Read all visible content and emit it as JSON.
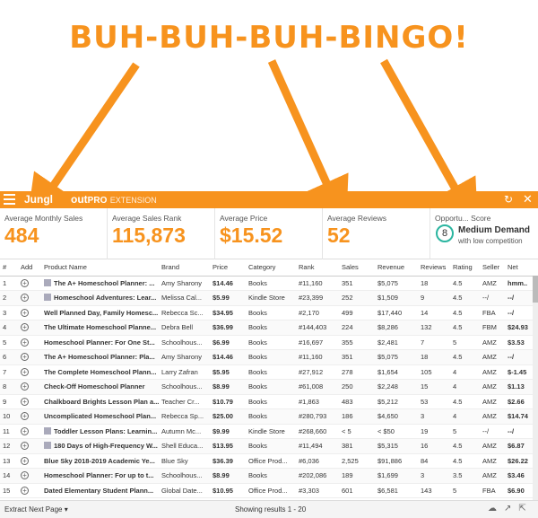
{
  "banner": {
    "text": "BUH-BUH-BUH-BINGO!"
  },
  "topbar": {
    "brand_prefix": "Jungl",
    "brand_suffix": "out",
    "pro": "PRO",
    "extension": "EXTENSION",
    "refresh_icon": "refresh-icon",
    "close_icon": "close-icon"
  },
  "stats": {
    "avg_monthly_sales": {
      "label": "Average Monthly Sales",
      "value": "484"
    },
    "avg_sales_rank": {
      "label": "Average Sales Rank",
      "value": "115,873"
    },
    "avg_price": {
      "label": "Average Price",
      "value": "$15.52"
    },
    "avg_reviews": {
      "label": "Average Reviews",
      "value": "52"
    },
    "opportunity": {
      "label": "Opportu... Score",
      "score": "8",
      "level": "Medium Demand",
      "sub": "with low competition"
    }
  },
  "columns": [
    "#",
    "Add",
    "Product Name",
    "Brand",
    "Price",
    "Category",
    "Rank",
    "Sales",
    "Revenue",
    "Reviews",
    "Rating",
    "Seller",
    "Net"
  ],
  "rows": [
    {
      "n": "1",
      "name": "The A+ Homeschool Planner: ...",
      "brand": "Amy Sharony",
      "price": "$14.46",
      "category": "Books",
      "rank": "#11,160",
      "sales": "351",
      "revenue": "$5,075",
      "reviews": "18",
      "rating": "4.5",
      "seller": "AMZ",
      "net": "hmm..",
      "thumb": true
    },
    {
      "n": "2",
      "name": "Homeschool Adventures: Lear...",
      "brand": "Melissa Cal...",
      "price": "$5.99",
      "category": "Kindle Store",
      "rank": "#23,399",
      "sales": "252",
      "revenue": "$1,509",
      "reviews": "9",
      "rating": "4.5",
      "seller": "--/",
      "net": "--/",
      "thumb": true
    },
    {
      "n": "3",
      "name": "Well Planned Day, Family Homesc...",
      "brand": "Rebecca Sc...",
      "price": "$34.95",
      "category": "Books",
      "rank": "#2,170",
      "sales": "499",
      "revenue": "$17,440",
      "reviews": "14",
      "rating": "4.5",
      "seller": "FBA",
      "net": "--/",
      "thumb": false
    },
    {
      "n": "4",
      "name": "The Ultimate Homeschool Planne...",
      "brand": "Debra Bell",
      "price": "$36.99",
      "category": "Books",
      "rank": "#144,403",
      "sales": "224",
      "revenue": "$8,286",
      "reviews": "132",
      "rating": "4.5",
      "seller": "FBM",
      "net": "$24.93",
      "thumb": false
    },
    {
      "n": "5",
      "name": "Homeschool Planner: For One St...",
      "brand": "Schoolhous...",
      "price": "$6.99",
      "category": "Books",
      "rank": "#16,697",
      "sales": "355",
      "revenue": "$2,481",
      "reviews": "7",
      "rating": "5",
      "seller": "AMZ",
      "net": "$3.53",
      "thumb": false
    },
    {
      "n": "6",
      "name": "The A+ Homeschool Planner: Pla...",
      "brand": "Amy Sharony",
      "price": "$14.46",
      "category": "Books",
      "rank": "#11,160",
      "sales": "351",
      "revenue": "$5,075",
      "reviews": "18",
      "rating": "4.5",
      "seller": "AMZ",
      "net": "--/",
      "thumb": false
    },
    {
      "n": "7",
      "name": "The Complete Homeschool Plann...",
      "brand": "Larry Zafran",
      "price": "$5.95",
      "category": "Books",
      "rank": "#27,912",
      "sales": "278",
      "revenue": "$1,654",
      "reviews": "105",
      "rating": "4",
      "seller": "AMZ",
      "net": "$-1.45",
      "thumb": false
    },
    {
      "n": "8",
      "name": "Check-Off Homeschool Planner",
      "brand": "Schoolhous...",
      "price": "$8.99",
      "category": "Books",
      "rank": "#61,008",
      "sales": "250",
      "revenue": "$2,248",
      "reviews": "15",
      "rating": "4",
      "seller": "AMZ",
      "net": "$1.13",
      "thumb": false
    },
    {
      "n": "9",
      "name": "Chalkboard Brights Lesson Plan a...",
      "brand": "Teacher Cr...",
      "price": "$10.79",
      "category": "Books",
      "rank": "#1,863",
      "sales": "483",
      "revenue": "$5,212",
      "reviews": "53",
      "rating": "4.5",
      "seller": "AMZ",
      "net": "$2.66",
      "thumb": false
    },
    {
      "n": "10",
      "name": "Uncomplicated Homeschool Plan...",
      "brand": "Rebecca Sp...",
      "price": "$25.00",
      "category": "Books",
      "rank": "#280,793",
      "sales": "186",
      "revenue": "$4,650",
      "reviews": "3",
      "rating": "4",
      "seller": "AMZ",
      "net": "$14.74",
      "thumb": false
    },
    {
      "n": "11",
      "name": "Toddler Lesson Plans: Learnin...",
      "brand": "Autumn Mc...",
      "price": "$9.99",
      "category": "Kindle Store",
      "rank": "#268,660",
      "sales": "< 5",
      "revenue": "< $50",
      "reviews": "19",
      "rating": "5",
      "seller": "--/",
      "net": "--/",
      "thumb": true
    },
    {
      "n": "12",
      "name": "180 Days of High-Frequency W...",
      "brand": "Shell Educa...",
      "price": "$13.95",
      "category": "Books",
      "rank": "#11,494",
      "sales": "381",
      "revenue": "$5,315",
      "reviews": "16",
      "rating": "4.5",
      "seller": "AMZ",
      "net": "$6.87",
      "thumb": true
    },
    {
      "n": "13",
      "name": "Blue Sky 2018-2019 Academic Ye...",
      "brand": "Blue Sky",
      "price": "$36.39",
      "category": "Office Prod...",
      "rank": "#6,036",
      "sales": "2,525",
      "revenue": "$91,886",
      "reviews": "84",
      "rating": "4.5",
      "seller": "AMZ",
      "net": "$26.22",
      "thumb": false
    },
    {
      "n": "14",
      "name": "Homeschool Planner: For up to t...",
      "brand": "Schoolhous...",
      "price": "$8.99",
      "category": "Books",
      "rank": "#202,086",
      "sales": "189",
      "revenue": "$1,699",
      "reviews": "3",
      "rating": "3.5",
      "seller": "AMZ",
      "net": "$3.46",
      "thumb": false
    },
    {
      "n": "15",
      "name": "Dated Elementary Student Plann...",
      "brand": "Global Date...",
      "price": "$10.95",
      "category": "Office Prod...",
      "rank": "#3,303",
      "sales": "601",
      "revenue": "$6,581",
      "reviews": "143",
      "rating": "5",
      "seller": "FBA",
      "net": "$6.90",
      "thumb": false
    }
  ],
  "footer": {
    "extract_label": "Extract Next Page ▾",
    "results_label": "Showing results 1 - 20"
  },
  "colors": {
    "accent": "#f7931e",
    "score_ring": "#2bb5a0"
  }
}
